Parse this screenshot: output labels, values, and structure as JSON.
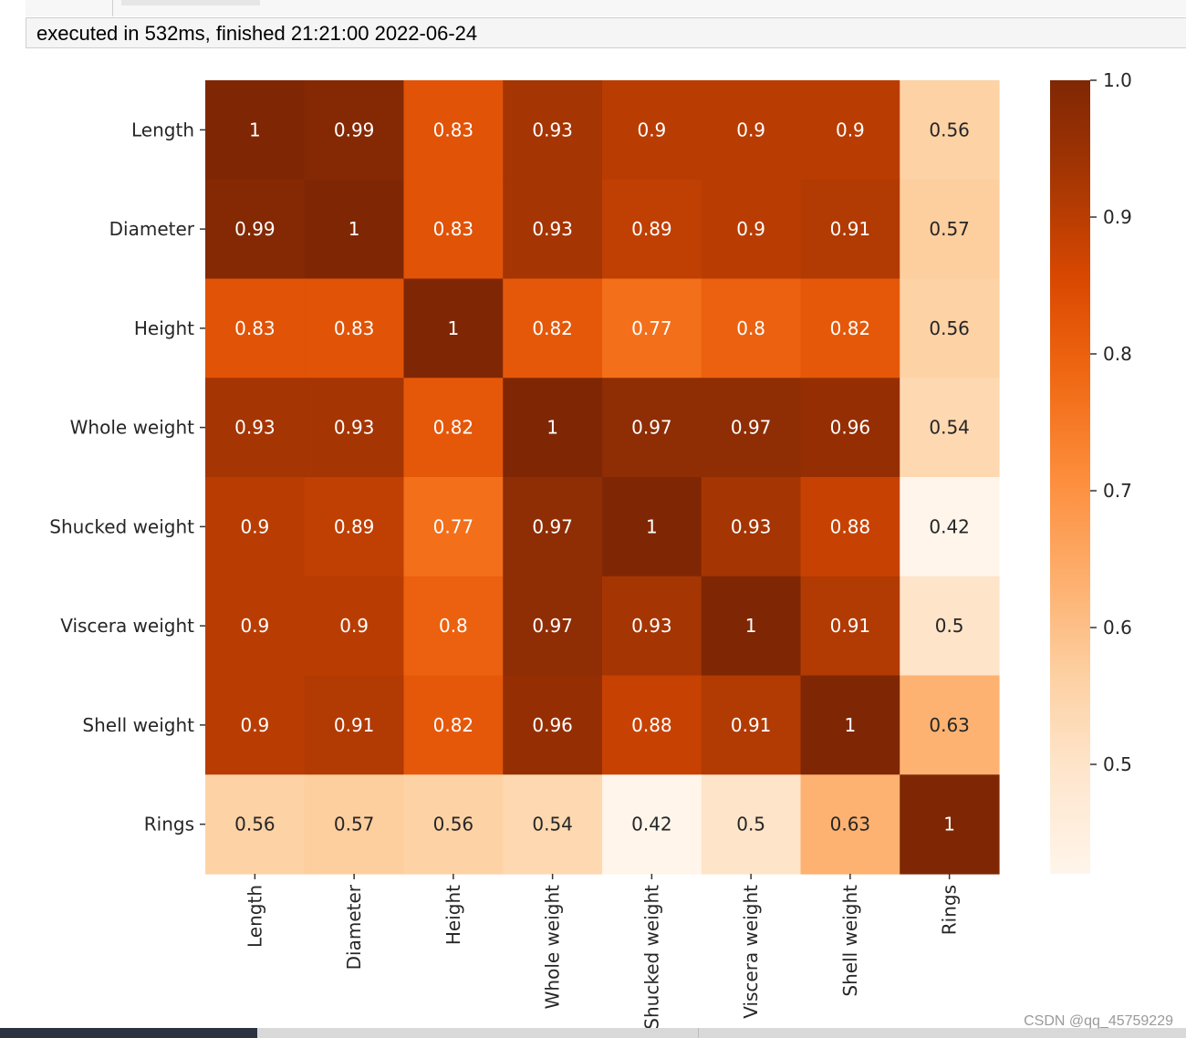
{
  "notebook": {
    "exec_status": "executed in 532ms, finished 21:21:00 2022-06-24"
  },
  "watermark": "CSDN @qq_45759229",
  "chart_data": {
    "type": "heatmap",
    "title": "",
    "xlabel": "",
    "ylabel": "",
    "colormap": "Oranges",
    "annotated": true,
    "labels": [
      "Length",
      "Diameter",
      "Height",
      "Whole weight",
      "Shucked weight",
      "Viscera weight",
      "Shell weight",
      "Rings"
    ],
    "values": [
      [
        1,
        0.99,
        0.83,
        0.93,
        0.9,
        0.9,
        0.9,
        0.56
      ],
      [
        0.99,
        1,
        0.83,
        0.93,
        0.89,
        0.9,
        0.91,
        0.57
      ],
      [
        0.83,
        0.83,
        1,
        0.82,
        0.77,
        0.8,
        0.82,
        0.56
      ],
      [
        0.93,
        0.93,
        0.82,
        1,
        0.97,
        0.97,
        0.96,
        0.54
      ],
      [
        0.9,
        0.89,
        0.77,
        0.97,
        1,
        0.93,
        0.88,
        0.42
      ],
      [
        0.9,
        0.9,
        0.8,
        0.97,
        0.93,
        1,
        0.91,
        0.5
      ],
      [
        0.9,
        0.91,
        0.82,
        0.96,
        0.88,
        0.91,
        1,
        0.63
      ],
      [
        0.56,
        0.57,
        0.56,
        0.54,
        0.42,
        0.5,
        0.63,
        1
      ]
    ],
    "colorbar": {
      "vmin": 0.42,
      "vmax": 1.0,
      "ticks": [
        0.5,
        0.6,
        0.7,
        0.8,
        0.9,
        1.0
      ],
      "tick_labels": [
        "0.5",
        "0.6",
        "0.7",
        "0.8",
        "0.9",
        "1.0"
      ]
    }
  }
}
